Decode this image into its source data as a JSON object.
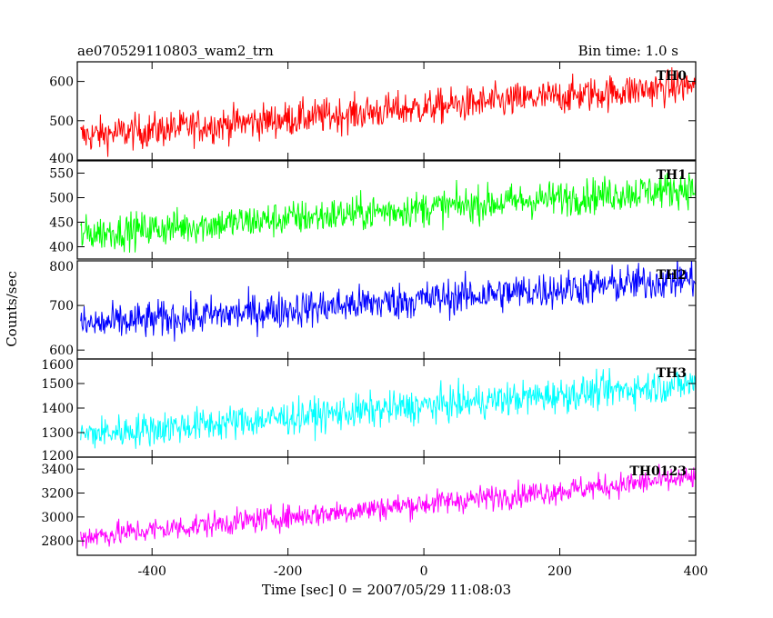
{
  "header": {
    "title_left": "ae070529110803_wam2_trn",
    "title_right": "Bin time: 1.0 s"
  },
  "axes": {
    "xlabel": "Time [sec] 0 = 2007/05/29 11:08:03",
    "ylabel": "Counts/sec"
  },
  "chart_data": {
    "type": "line",
    "x_range": [
      -510,
      400
    ],
    "x_ticks": [
      -400,
      -200,
      0,
      200,
      400
    ],
    "bin_time_s": 1.0,
    "panels": [
      {
        "name": "TH0",
        "color": "#ff0000",
        "ylim": [
          400,
          650
        ],
        "yticks": [
          400,
          500,
          600
        ],
        "trend_start": 460,
        "trend_end": 590,
        "noise": 32
      },
      {
        "name": "TH1",
        "color": "#00ff00",
        "ylim": [
          375,
          575
        ],
        "yticks": [
          400,
          450,
          500,
          550
        ],
        "trend_start": 425,
        "trend_end": 520,
        "noise": 26
      },
      {
        "name": "TH2",
        "color": "#0000ff",
        "ylim": [
          580,
          800
        ],
        "yticks": [
          600,
          700,
          800
        ],
        "trend_start": 655,
        "trend_end": 760,
        "noise": 30
      },
      {
        "name": "TH3",
        "color": "#00ffff",
        "ylim": [
          1200,
          1600
        ],
        "yticks": [
          1200,
          1300,
          1400,
          1500,
          1600
        ],
        "trend_start": 1290,
        "trend_end": 1500,
        "noise": 50
      },
      {
        "name": "TH0123",
        "color": "#ff00ff",
        "ylim": [
          2680,
          3500
        ],
        "yticks": [
          2800,
          3000,
          3200,
          3400
        ],
        "trend_start": 2830,
        "trend_end": 3330,
        "noise": 75
      }
    ]
  }
}
